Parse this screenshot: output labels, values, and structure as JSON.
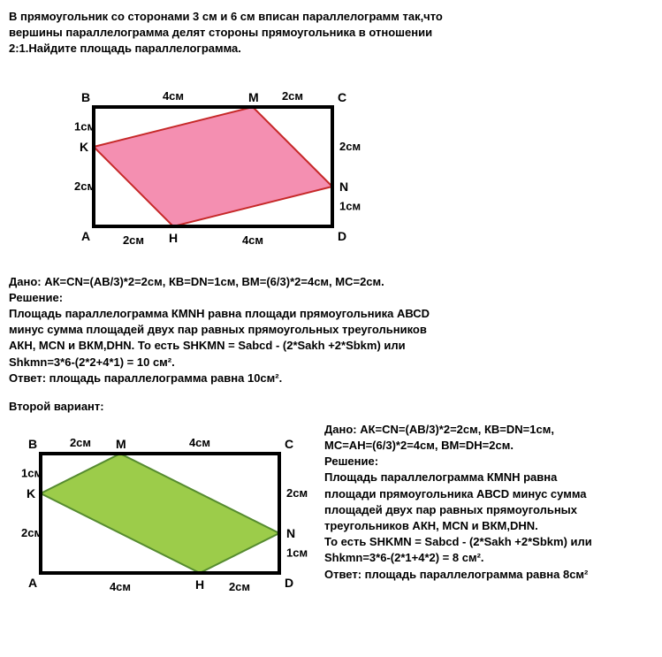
{
  "problem": {
    "line1": "В прямоугольник со сторонами 3 см и 6 см вписан параллелограмм так,что",
    "line2": "вершины параллелограмма делят стороны прямоугольника в отношении",
    "line3": "2:1.Найдите площадь параллелограмма."
  },
  "diagram1": {
    "rect_width": 6,
    "rect_height": 3,
    "scale": 45,
    "labels": {
      "B": "B",
      "M": "M",
      "C": "C",
      "K": "K",
      "N": "N",
      "A": "A",
      "H": "H",
      "D": "D"
    },
    "segs": {
      "top_left": "4см",
      "top_right": "2см",
      "bot_left": "2см",
      "bot_right": "4см",
      "left_top": "1см",
      "left_bot": "2см",
      "right_top": "2см",
      "right_bot": "1см"
    },
    "points": {
      "B": [
        0,
        0
      ],
      "C": [
        6,
        0
      ],
      "A": [
        0,
        3
      ],
      "D": [
        6,
        3
      ],
      "M": [
        4,
        0
      ],
      "H": [
        2,
        3
      ],
      "K": [
        0,
        1
      ],
      "N": [
        6,
        2
      ]
    },
    "rect_color": "#000000",
    "rect_stroke": 4,
    "para_fill": "#f48fb1",
    "para_stroke": "#c62828",
    "para_stroke_w": 2,
    "label_font": "bold 14px Arial"
  },
  "solution1": {
    "given": "Дано: АК=СN=(AB/3)*2=2см, КВ=DN=1см, ВМ=(6/3)*2=4см, МС=2см.",
    "solving": "Решение:",
    "s1": "Площадь параллелограмма КМNH равна площади прямоугольника АВСD",
    "s2": "минус сумма площадей двух пар равных прямоугольных треугольников",
    "s3": "АКН, МСN и ВКМ,DHN. То есть SHKMN = Sabcd - (2*Sakh +2*Sbkm) или",
    "s4": "Shkmn=3*6-(2*2+4*1) = 10 см².",
    "answer": "Ответ: площадь параллелограмма равна 10см²."
  },
  "variant2_label": "Второй вариант:",
  "diagram2": {
    "rect_width": 6,
    "rect_height": 3,
    "scale": 45,
    "labels": {
      "B": "B",
      "M": "M",
      "C": "C",
      "K": "K",
      "N": "N",
      "A": "A",
      "H": "H",
      "D": "D"
    },
    "segs": {
      "top_left": "2см",
      "top_right": "4см",
      "bot_left": "4см",
      "bot_right": "2см",
      "left_top": "1см",
      "left_bot": "2см",
      "right_top": "2см",
      "right_bot": "1см"
    },
    "points": {
      "B": [
        0,
        0
      ],
      "C": [
        6,
        0
      ],
      "A": [
        0,
        3
      ],
      "D": [
        6,
        3
      ],
      "M": [
        2,
        0
      ],
      "H": [
        4,
        3
      ],
      "K": [
        0,
        1
      ],
      "N": [
        6,
        2
      ]
    },
    "rect_color": "#000000",
    "rect_stroke": 4,
    "para_fill": "#9ccc4a",
    "para_stroke": "#558b2f",
    "para_stroke_w": 2,
    "label_font": "bold 14px Arial"
  },
  "solution2": {
    "given": "Дано: АК=СN=(AB/3)*2=2см, КВ=DN=1см,",
    "given2": "МС=АН=(6/3)*2=4см, ВМ=DH=2см.",
    "solving": "Решение:",
    "s1": "Площадь параллелограмма КМNH равна",
    "s2": "площади прямоугольника АВСD минус сумма",
    "s3": "площадей двух пар равных прямоугольных",
    "s4": "треугольников АКН, МСN и ВКМ,DHN.",
    "s5": "То есть SHKMN = Sabcd - (2*Sakh +2*Sbkm) или",
    "s6": "Shkmn=3*6-(2*1+4*2) = 8 см².",
    "answer": "Ответ: площадь параллелограмма равна 8см²"
  }
}
